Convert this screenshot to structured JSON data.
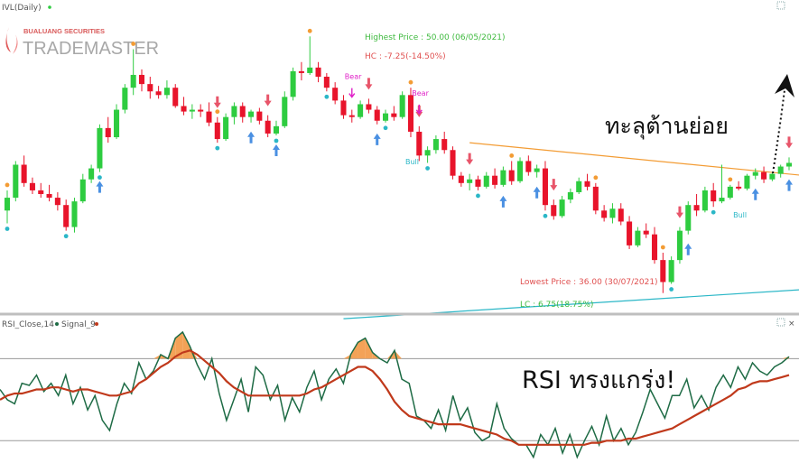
{
  "price_panel": {
    "title": "IVL(Daily)",
    "logo": {
      "top": "BUALUANG SECURITIES",
      "main": "TRADEMASTER"
    },
    "highest_label": "Highest Price : 50.00 (06/05/2021)",
    "hc_label": "HC : -7.25(-14.50%)",
    "lowest_label": "Lowest Price : 36.00 (30/07/2021)",
    "lc_label": "LC : 6.75(18.75%)",
    "bear_label": "Bear",
    "bull_label": "Bull",
    "annotation": "ทะลุต้านย่อย",
    "colors": {
      "up": "#2ecc40",
      "down": "#e8142b",
      "resistance": "#f39c34",
      "support": "#2bb7c7",
      "arrow_up": "#4a90e2",
      "arrow_down": "#e8556a",
      "bear": "#e020c8",
      "bull": "#2bb7c7",
      "text_green": "#3fba3f",
      "text_red": "#e05050"
    }
  },
  "rsi_panel": {
    "title": "RSI_Close,14",
    "signal_title": "Signal_9",
    "annotation": "RSI ทรงแกร่ง!",
    "colors": {
      "rsi": "#1e6b45",
      "signal": "#c0391b",
      "overbought_fill": "#f3a257"
    }
  },
  "chart_data": [
    {
      "type": "candlestick",
      "title": "IVL(Daily)",
      "ylim": [
        35,
        51
      ],
      "highest": {
        "price": 50.0,
        "date": "06/05/2021"
      },
      "lowest": {
        "price": 36.0,
        "date": "30/07/2021"
      },
      "candles": [
        [
          40.5,
          41.6,
          39.8,
          41.2
        ],
        [
          41.2,
          43.2,
          41.0,
          43.0
        ],
        [
          43.0,
          43.5,
          41.8,
          42.0
        ],
        [
          42.0,
          42.3,
          41.4,
          41.6
        ],
        [
          41.6,
          42.0,
          41.2,
          41.4
        ],
        [
          41.4,
          41.9,
          41.0,
          41.2
        ],
        [
          41.2,
          41.5,
          40.5,
          40.8
        ],
        [
          40.8,
          41.1,
          39.4,
          39.6
        ],
        [
          39.6,
          41.2,
          39.3,
          41.0
        ],
        [
          41.0,
          42.5,
          40.9,
          42.2
        ],
        [
          42.2,
          43.0,
          42.0,
          42.8
        ],
        [
          42.8,
          45.2,
          42.6,
          45.0
        ],
        [
          45.0,
          45.6,
          44.2,
          44.5
        ],
        [
          44.5,
          46.3,
          44.4,
          46.0
        ],
        [
          46.0,
          47.4,
          45.8,
          47.2
        ],
        [
          47.2,
          49.3,
          46.8,
          47.9
        ],
        [
          47.9,
          48.2,
          47.0,
          47.4
        ],
        [
          47.4,
          47.8,
          46.6,
          47.0
        ],
        [
          47.0,
          47.3,
          46.6,
          46.8
        ],
        [
          46.8,
          47.6,
          46.6,
          47.2
        ],
        [
          47.2,
          47.4,
          46.1,
          46.2
        ],
        [
          46.2,
          46.7,
          45.7,
          45.9
        ],
        [
          45.9,
          46.3,
          45.5,
          46.0
        ],
        [
          46.0,
          46.3,
          45.6,
          45.9
        ],
        [
          45.9,
          46.4,
          45.1,
          45.3
        ],
        [
          45.3,
          45.6,
          44.2,
          44.4
        ],
        [
          44.4,
          45.8,
          44.3,
          45.6
        ],
        [
          45.6,
          46.4,
          45.2,
          46.2
        ],
        [
          46.2,
          46.4,
          45.3,
          45.6
        ],
        [
          45.6,
          46.0,
          45.3,
          45.9
        ],
        [
          45.9,
          46.1,
          45.2,
          45.4
        ],
        [
          45.4,
          45.7,
          44.5,
          44.7
        ],
        [
          44.7,
          45.4,
          44.6,
          45.1
        ],
        [
          45.1,
          47.0,
          45.0,
          46.7
        ],
        [
          46.7,
          48.3,
          46.5,
          48.1
        ],
        [
          48.1,
          48.6,
          47.6,
          48.0
        ],
        [
          48.0,
          50.0,
          47.9,
          48.3
        ],
        [
          48.3,
          48.6,
          47.5,
          47.8
        ],
        [
          47.8,
          48.0,
          47.0,
          47.2
        ],
        [
          47.2,
          47.5,
          46.3,
          46.5
        ],
        [
          46.5,
          46.8,
          45.5,
          45.7
        ],
        [
          45.7,
          46.0,
          45.3,
          45.6
        ],
        [
          45.6,
          46.5,
          45.5,
          46.3
        ],
        [
          46.3,
          46.6,
          45.8,
          46.0
        ],
        [
          46.0,
          46.2,
          45.2,
          45.4
        ],
        [
          45.4,
          46.0,
          45.3,
          45.8
        ],
        [
          45.8,
          46.2,
          45.4,
          45.6
        ],
        [
          45.6,
          47.0,
          45.5,
          46.8
        ],
        [
          46.8,
          47.2,
          44.5,
          44.8
        ],
        [
          44.8,
          45.1,
          43.2,
          43.5
        ],
        [
          43.5,
          44.0,
          43.1,
          43.8
        ],
        [
          43.8,
          44.6,
          43.6,
          44.4
        ],
        [
          44.4,
          44.8,
          43.6,
          43.8
        ],
        [
          43.8,
          44.0,
          42.2,
          42.4
        ],
        [
          42.4,
          42.6,
          41.8,
          42.0
        ],
        [
          42.0,
          42.5,
          41.6,
          42.2
        ],
        [
          42.2,
          42.4,
          41.6,
          41.8
        ],
        [
          41.8,
          42.6,
          41.7,
          42.4
        ],
        [
          42.4,
          42.8,
          41.7,
          41.9
        ],
        [
          41.9,
          42.9,
          41.8,
          42.7
        ],
        [
          42.7,
          43.2,
          41.9,
          42.1
        ],
        [
          42.1,
          43.4,
          42.0,
          43.2
        ],
        [
          43.2,
          43.5,
          42.4,
          42.6
        ],
        [
          42.6,
          43.0,
          42.3,
          42.8
        ],
        [
          42.8,
          43.2,
          40.5,
          40.8
        ],
        [
          40.8,
          41.1,
          40.0,
          40.2
        ],
        [
          40.2,
          41.3,
          40.1,
          41.1
        ],
        [
          41.1,
          41.7,
          40.9,
          41.5
        ],
        [
          41.5,
          42.3,
          41.4,
          42.1
        ],
        [
          42.1,
          42.5,
          41.6,
          41.8
        ],
        [
          41.8,
          42.0,
          40.3,
          40.5
        ],
        [
          40.5,
          40.8,
          39.9,
          40.1
        ],
        [
          40.1,
          40.9,
          39.8,
          40.6
        ],
        [
          40.6,
          40.9,
          39.7,
          39.9
        ],
        [
          39.9,
          40.2,
          38.4,
          38.6
        ],
        [
          38.6,
          39.6,
          38.5,
          39.4
        ],
        [
          39.4,
          39.8,
          39.0,
          39.2
        ],
        [
          39.2,
          39.6,
          37.6,
          37.8
        ],
        [
          37.8,
          38.2,
          36.0,
          36.6
        ],
        [
          36.6,
          38.0,
          36.5,
          37.8
        ],
        [
          37.8,
          39.6,
          37.6,
          39.4
        ],
        [
          39.4,
          41.0,
          39.2,
          40.8
        ],
        [
          40.8,
          41.4,
          40.2,
          40.5
        ],
        [
          40.5,
          41.8,
          40.4,
          41.6
        ],
        [
          41.6,
          42.0,
          40.7,
          41.0
        ],
        [
          41.0,
          43.0,
          40.9,
          41.2
        ],
        [
          41.2,
          41.9,
          41.1,
          41.8
        ],
        [
          41.8,
          42.1,
          41.6,
          41.7
        ],
        [
          41.7,
          42.5,
          41.6,
          42.4
        ],
        [
          42.4,
          42.8,
          42.2,
          42.6
        ],
        [
          42.6,
          42.9,
          42.0,
          42.2
        ],
        [
          42.2,
          42.6,
          42.1,
          42.5
        ],
        [
          42.5,
          43.0,
          42.3,
          42.9
        ],
        [
          42.9,
          43.4,
          42.7,
          43.1
        ]
      ],
      "resistance_dots": [
        0,
        15,
        25,
        36,
        48,
        60,
        70,
        78,
        86,
        95
      ],
      "support_dots": [
        0,
        7,
        11,
        25,
        32,
        38,
        45,
        50,
        56,
        64,
        79,
        84
      ],
      "buy_arrows": [
        11,
        29,
        32,
        44,
        59,
        63,
        81,
        89,
        93
      ],
      "sell_arrows": [
        25,
        31,
        43,
        49,
        55,
        65,
        80,
        93
      ],
      "bear_markers": [
        41,
        49
      ],
      "bull_markers": [
        48,
        87
      ],
      "trendlines": [
        {
          "name": "resistance",
          "from": [
            55,
            44.2
          ],
          "to": [
            95,
            42.4
          ]
        },
        {
          "name": "support",
          "from": [
            40,
            34.6
          ],
          "to": [
            95,
            36.2
          ]
        }
      ]
    },
    {
      "type": "line",
      "title": "RSI_Close,14",
      "ylim": [
        20,
        90
      ],
      "levels": [
        70,
        30
      ],
      "series": [
        {
          "name": "RSI_Close,14",
          "values": [
            55,
            50,
            48,
            58,
            57,
            62,
            54,
            58,
            52,
            62,
            48,
            56,
            45,
            52,
            40,
            35,
            48,
            58,
            53,
            68,
            60,
            64,
            72,
            70,
            80,
            83,
            76,
            67,
            60,
            70,
            53,
            40,
            50,
            60,
            44,
            66,
            62,
            50,
            57,
            40,
            51,
            44,
            56,
            64,
            50,
            60,
            65,
            58,
            72,
            78,
            80,
            73,
            70,
            68,
            74,
            60,
            58,
            42,
            40,
            36,
            45,
            35,
            52,
            40,
            46,
            34,
            30,
            32,
            48,
            36,
            31,
            28,
            28,
            22,
            33,
            28,
            36,
            24,
            33,
            22,
            30,
            37,
            28,
            42,
            30,
            36,
            28,
            34,
            44,
            55,
            48,
            41,
            52,
            52,
            60,
            46,
            52,
            45,
            56,
            62,
            56,
            66,
            60,
            68,
            64,
            62,
            66,
            68,
            71
          ]
        },
        {
          "name": "Signal_9",
          "values": [
            50,
            52,
            53,
            53,
            54,
            55,
            55,
            56,
            56,
            55,
            54,
            55,
            55,
            54,
            53,
            52,
            52,
            53,
            54,
            58,
            60,
            63,
            66,
            68,
            71,
            73,
            74,
            72,
            69,
            66,
            63,
            59,
            56,
            54,
            52,
            52,
            52,
            52,
            52,
            52,
            52,
            52,
            53,
            55,
            56,
            58,
            60,
            62,
            64,
            66,
            66,
            64,
            60,
            55,
            49,
            45,
            42,
            41,
            40,
            39,
            38,
            38,
            38,
            38,
            37,
            36,
            35,
            34,
            33,
            31,
            30,
            28,
            28,
            28,
            28,
            28,
            28,
            28,
            28,
            28,
            28,
            29,
            29,
            30,
            30,
            30,
            31,
            31,
            32,
            33,
            34,
            35,
            36,
            38,
            40,
            42,
            44,
            46,
            48,
            50,
            52,
            55,
            56,
            58,
            59,
            59,
            60,
            61,
            62
          ]
        }
      ]
    }
  ]
}
